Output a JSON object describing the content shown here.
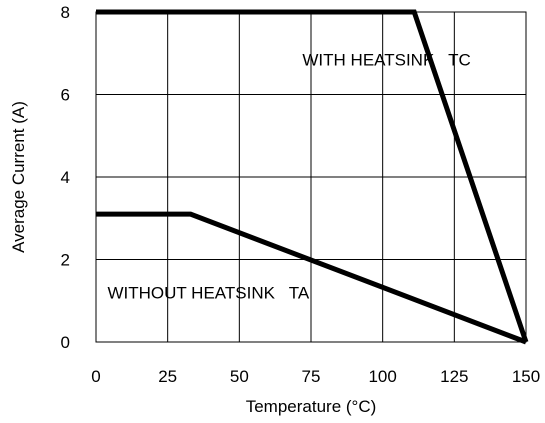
{
  "chart_data": {
    "type": "line",
    "xlabel": "Temperature (°C)",
    "ylabel": "Average Current (A)",
    "xlim": [
      0,
      150
    ],
    "ylim": [
      0,
      8
    ],
    "xticks": [
      0,
      25,
      50,
      75,
      100,
      125,
      150
    ],
    "yticks": [
      0,
      2,
      4,
      6,
      8
    ],
    "grid": true,
    "series": [
      {
        "id": "with_heatsink",
        "x": [
          0,
          111,
          150
        ],
        "y": [
          8,
          8,
          0
        ],
        "label": "WITH HEATSINK   TC",
        "label_at": [
          72,
          6.7
        ]
      },
      {
        "id": "without_heatsink",
        "x": [
          0,
          33,
          150
        ],
        "y": [
          3.1,
          3.1,
          0
        ],
        "label": "WITHOUT HEATSINK   TA",
        "label_at": [
          4,
          1.05
        ]
      }
    ],
    "colors": {
      "line": "#000000",
      "grid": "#000000",
      "background": "#ffffff"
    }
  }
}
